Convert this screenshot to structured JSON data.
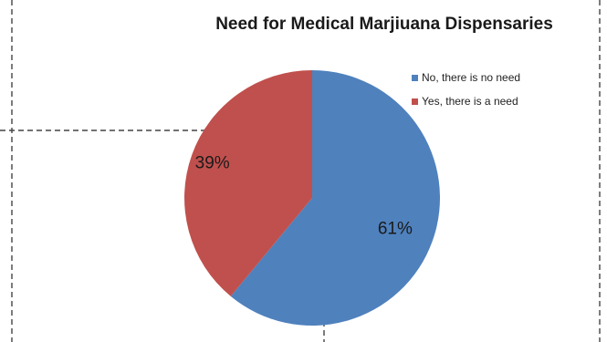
{
  "chart_data": {
    "type": "pie",
    "title": "Need for Medical Marjiuana Dispensaries",
    "categories": [
      "No, there is no need",
      "Yes, there is a need"
    ],
    "values": [
      61,
      39
    ],
    "data_labels": [
      "61%",
      "39%"
    ],
    "colors": [
      "#4f81bd",
      "#c0504d"
    ],
    "start_angle_deg": 0,
    "direction": "clockwise",
    "legend_position": "right"
  }
}
